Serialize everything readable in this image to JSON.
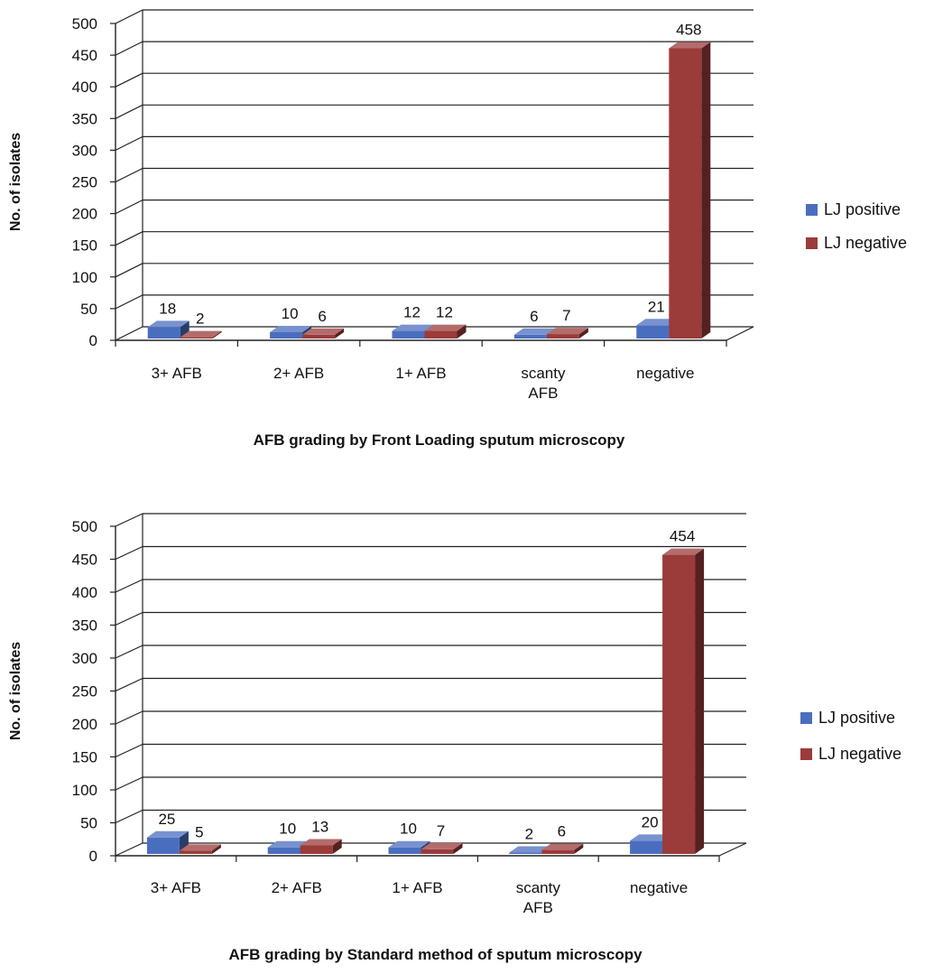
{
  "chart_data": [
    {
      "type": "bar",
      "title": "AFB grading by Front Loading sputum microscopy",
      "xlabel": "",
      "ylabel": "No. of isolates",
      "ylim": [
        0,
        500
      ],
      "yticks": [
        0,
        50,
        100,
        150,
        200,
        250,
        300,
        350,
        400,
        450,
        500
      ],
      "grid": true,
      "legend_position": "right",
      "categories": [
        [
          "3+ AFB"
        ],
        [
          "2+ AFB"
        ],
        [
          "1+ AFB"
        ],
        [
          "scanty",
          "AFB"
        ],
        [
          "negative"
        ]
      ],
      "series": [
        {
          "name": "LJ positive",
          "color": "#4a6ebf",
          "values": [
            18,
            10,
            12,
            6,
            21
          ]
        },
        {
          "name": "LJ negative",
          "color": "#9b3b3a",
          "values": [
            2,
            6,
            12,
            7,
            458
          ]
        }
      ]
    },
    {
      "type": "bar",
      "title": "AFB grading by Standard method of sputum microscopy",
      "xlabel": "",
      "ylabel": "No. of isolates",
      "ylim": [
        0,
        500
      ],
      "yticks": [
        0,
        50,
        100,
        150,
        200,
        250,
        300,
        350,
        400,
        450,
        500
      ],
      "grid": true,
      "legend_position": "right",
      "categories": [
        [
          "3+ AFB"
        ],
        [
          "2+ AFB"
        ],
        [
          "1+ AFB"
        ],
        [
          "scanty",
          "AFB"
        ],
        [
          "negative"
        ]
      ],
      "series": [
        {
          "name": "LJ positive",
          "color": "#4a6ebf",
          "values": [
            25,
            10,
            10,
            2,
            20
          ]
        },
        {
          "name": "LJ negative",
          "color": "#9b3b3a",
          "values": [
            5,
            13,
            7,
            6,
            454
          ]
        }
      ]
    }
  ]
}
